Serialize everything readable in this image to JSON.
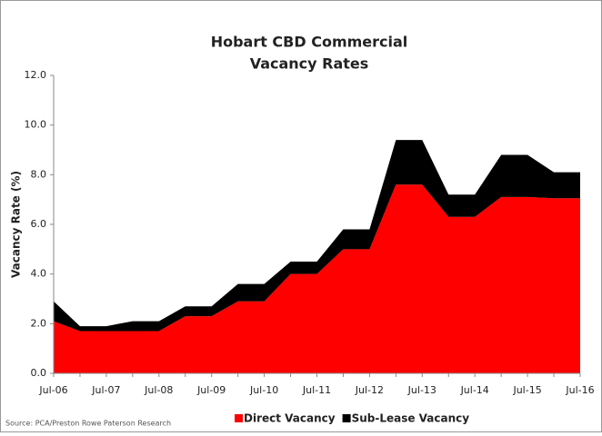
{
  "chart_data": {
    "type": "stacked_area",
    "title": [
      "Hobart CBD Commercial",
      "Vacancy Rates"
    ],
    "y_label": "Vacancy Rate (%)",
    "source": "Source: PCA/Preston Rowe Paterson Research",
    "categories": [
      "Jul-06",
      null,
      "Jul-07",
      null,
      "Jul-08",
      null,
      "Jul-09",
      null,
      "Jul-10",
      null,
      "Jul-11",
      null,
      "Jul-12",
      null,
      "Jul-13",
      null,
      "Jul-14",
      null,
      "Jul-15",
      null,
      "Jul-16"
    ],
    "series": [
      {
        "name": "Direct Vacancy",
        "color": "#ff0000",
        "values": [
          2.1,
          1.7,
          1.7,
          1.7,
          1.7,
          2.3,
          2.3,
          2.9,
          2.9,
          4.0,
          4.0,
          5.0,
          5.0,
          7.6,
          7.6,
          6.3,
          6.3,
          7.1,
          7.1,
          7.05,
          7.05
        ]
      },
      {
        "name": "Sub-Lease Vacancy",
        "color": "#000000",
        "values": [
          0.8,
          0.2,
          0.2,
          0.4,
          0.4,
          0.4,
          0.4,
          0.7,
          0.7,
          0.5,
          0.5,
          0.8,
          0.8,
          1.8,
          1.8,
          0.9,
          0.9,
          1.7,
          1.7,
          1.05,
          1.05
        ]
      }
    ],
    "ylim": [
      0,
      12
    ],
    "yticks": [
      {
        "value": 0,
        "label": "0.0"
      },
      {
        "value": 2,
        "label": "2.0"
      },
      {
        "value": 4,
        "label": "4.0"
      },
      {
        "value": 6,
        "label": "6.0"
      },
      {
        "value": 8,
        "label": "8.0"
      },
      {
        "value": 10,
        "label": "10.0"
      },
      {
        "value": 12,
        "label": "12.0"
      }
    ],
    "legend": "bottom"
  }
}
